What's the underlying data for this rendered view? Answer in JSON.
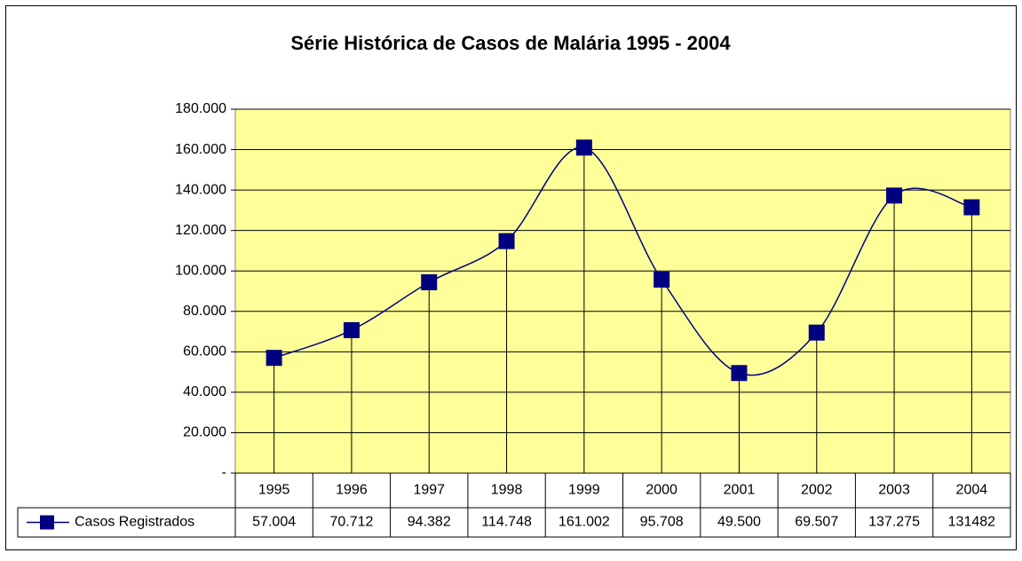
{
  "chart_data": {
    "type": "line",
    "title": "Série Histórica de Casos de Malária 1995 - 2004",
    "categories": [
      "1995",
      "1996",
      "1997",
      "1998",
      "1999",
      "2000",
      "2001",
      "2002",
      "2003",
      "2004"
    ],
    "series": [
      {
        "name": "Casos Registrados",
        "color": "#000080",
        "values": [
          57004,
          70712,
          94382,
          114748,
          161002,
          95708,
          49500,
          69507,
          137275,
          131482
        ],
        "value_labels": [
          "57.004",
          "70.712",
          "94.382",
          "114.748",
          "161.002",
          "95.708",
          "49.500",
          "69.507",
          "137.275",
          "131482"
        ]
      }
    ],
    "ylim": [
      0,
      180000
    ],
    "yticks": [
      {
        "value": 0,
        "label": "-"
      },
      {
        "value": 20000,
        "label": "20.000"
      },
      {
        "value": 40000,
        "label": "40.000"
      },
      {
        "value": 60000,
        "label": "60.000"
      },
      {
        "value": 80000,
        "label": "80.000"
      },
      {
        "value": 100000,
        "label": "100.000"
      },
      {
        "value": 120000,
        "label": "120.000"
      },
      {
        "value": 140000,
        "label": "140.000"
      },
      {
        "value": 160000,
        "label": "160.000"
      },
      {
        "value": 180000,
        "label": "180.000"
      }
    ],
    "grid": true,
    "plot_background": "#ffff99"
  }
}
